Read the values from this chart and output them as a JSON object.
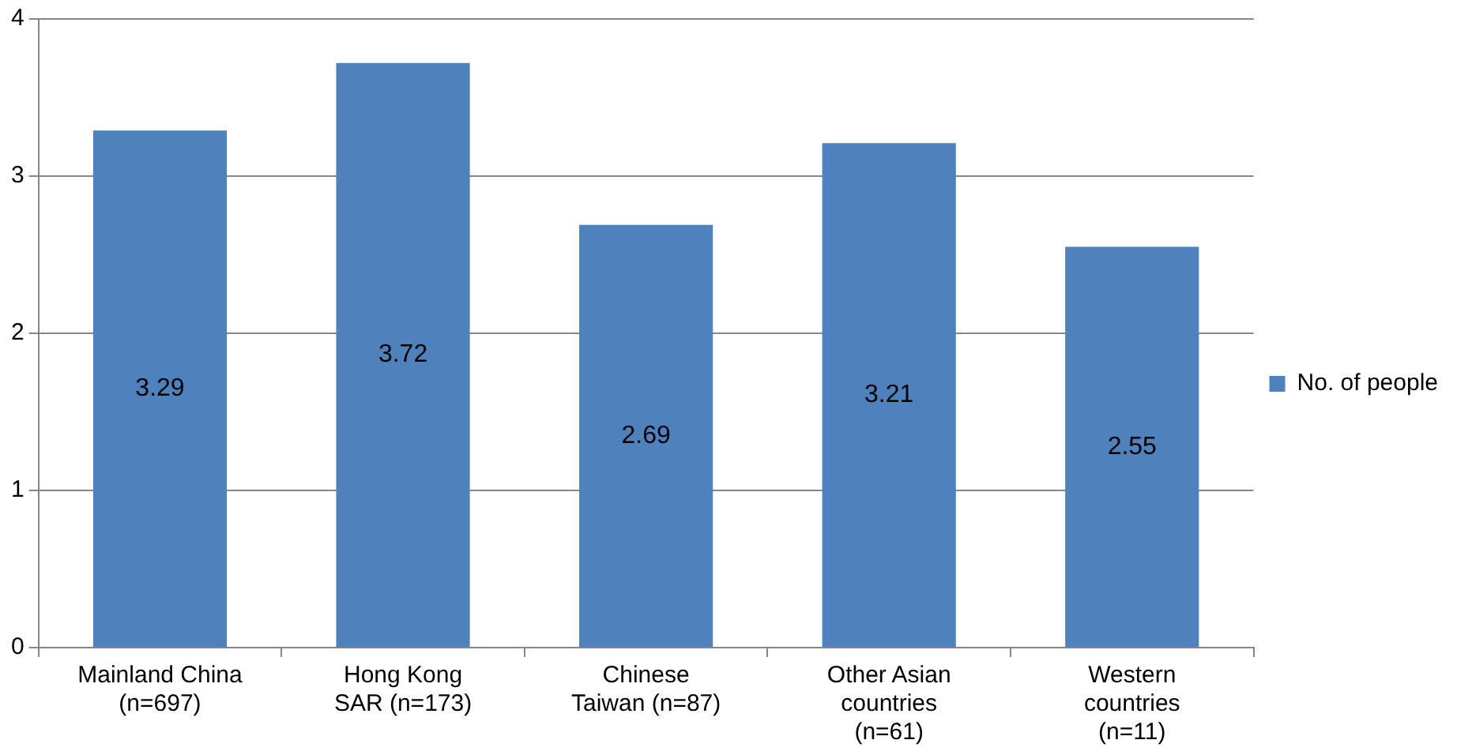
{
  "chart_data": {
    "type": "bar",
    "categories": [
      "Mainland China\n(n=697)",
      "Hong Kong\nSAR (n=173)",
      "Chinese\nTaiwan (n=87)",
      "Other Asian\ncountries\n(n=61)",
      "Western\ncountries\n(n=11)"
    ],
    "series": [
      {
        "name": "No. of people",
        "color": "#4f81bd",
        "values": [
          3.29,
          3.72,
          2.69,
          3.21,
          2.55
        ]
      }
    ],
    "ylim": [
      0,
      4
    ],
    "yticks": [
      0,
      1,
      2,
      3,
      4
    ],
    "grid": "y",
    "legend": "right",
    "data_labels": true
  }
}
